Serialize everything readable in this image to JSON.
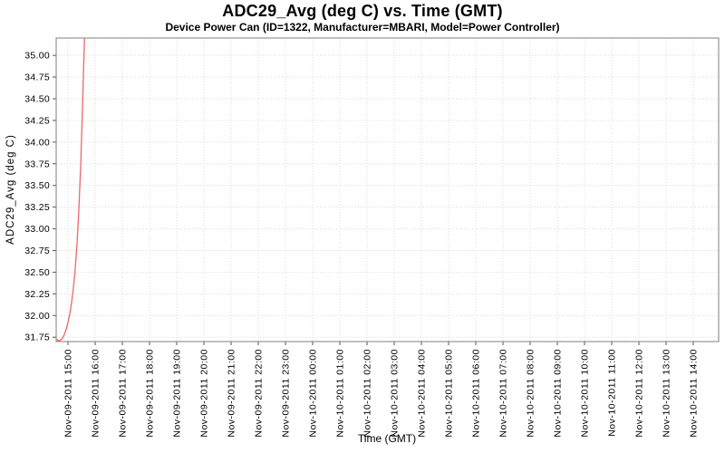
{
  "chart": {
    "title": "ADC29_Avg (deg C) vs. Time (GMT)",
    "subtitle": "Device Power Can (ID=1322, Manufacturer=MBARI, Model=Power Controller)",
    "xlabel": "Time (GMT)",
    "ylabel": "ADC29_Avg (deg C)"
  },
  "chart_data": {
    "type": "line",
    "title": "ADC29_Avg (deg C) vs. Time (GMT)",
    "subtitle": "Device Power Can (ID=1322, Manufacturer=MBARI, Model=Power Controller)",
    "xlabel": "Time (GMT)",
    "ylabel": "ADC29_Avg (deg C)",
    "grid": true,
    "legend": "none",
    "x_unit": "minutes since Nov-09-2011 00:00 GMT",
    "x_range": [
      874,
      2336
    ],
    "y_range": [
      31.7,
      35.2
    ],
    "y_ticks": [
      31.75,
      32.0,
      32.25,
      32.5,
      32.75,
      33.0,
      33.25,
      33.5,
      33.75,
      34.0,
      34.25,
      34.5,
      34.75,
      35.0
    ],
    "x_ticks": [
      {
        "t": 900,
        "label": "Nov-09-2011 15:00"
      },
      {
        "t": 960,
        "label": "Nov-09-2011 16:00"
      },
      {
        "t": 1020,
        "label": "Nov-09-2011 17:00"
      },
      {
        "t": 1080,
        "label": "Nov-09-2011 18:00"
      },
      {
        "t": 1140,
        "label": "Nov-09-2011 19:00"
      },
      {
        "t": 1200,
        "label": "Nov-09-2011 20:00"
      },
      {
        "t": 1260,
        "label": "Nov-09-2011 21:00"
      },
      {
        "t": 1320,
        "label": "Nov-09-2011 22:00"
      },
      {
        "t": 1380,
        "label": "Nov-09-2011 23:00"
      },
      {
        "t": 1440,
        "label": "Nov-10-2011 00:00"
      },
      {
        "t": 1500,
        "label": "Nov-10-2011 01:00"
      },
      {
        "t": 1560,
        "label": "Nov-10-2011 02:00"
      },
      {
        "t": 1620,
        "label": "Nov-10-2011 03:00"
      },
      {
        "t": 1680,
        "label": "Nov-10-2011 04:00"
      },
      {
        "t": 1740,
        "label": "Nov-10-2011 05:00"
      },
      {
        "t": 1800,
        "label": "Nov-10-2011 06:00"
      },
      {
        "t": 1860,
        "label": "Nov-10-2011 07:00"
      },
      {
        "t": 1920,
        "label": "Nov-10-2011 08:00"
      },
      {
        "t": 1980,
        "label": "Nov-10-2011 09:00"
      },
      {
        "t": 2040,
        "label": "Nov-10-2011 10:00"
      },
      {
        "t": 2100,
        "label": "Nov-10-2011 11:00"
      },
      {
        "t": 2160,
        "label": "Nov-10-2011 12:00"
      },
      {
        "t": 2220,
        "label": "Nov-10-2011 13:00"
      },
      {
        "t": 2280,
        "label": "Nov-10-2011 14:00"
      }
    ],
    "series": [
      {
        "name": "ADC29_Avg",
        "color": "#ee6666",
        "points": [
          [
            874,
            31.73
          ],
          [
            876,
            31.72
          ],
          [
            880,
            31.71
          ],
          [
            884,
            31.72
          ],
          [
            888,
            31.74
          ],
          [
            892,
            31.78
          ],
          [
            896,
            31.84
          ],
          [
            900,
            31.92
          ],
          [
            904,
            32.02
          ],
          [
            908,
            32.15
          ],
          [
            912,
            32.32
          ],
          [
            916,
            32.54
          ],
          [
            920,
            32.83
          ],
          [
            924,
            33.22
          ],
          [
            928,
            33.72
          ],
          [
            932,
            34.38
          ],
          [
            935,
            34.95
          ],
          [
            937,
            35.3
          ]
        ]
      }
    ],
    "colors": {
      "grid": "#d9d9d9",
      "plot_border": "#7f7f7f",
      "tick": "#555555",
      "text": "#000000",
      "background": "#ffffff"
    }
  }
}
